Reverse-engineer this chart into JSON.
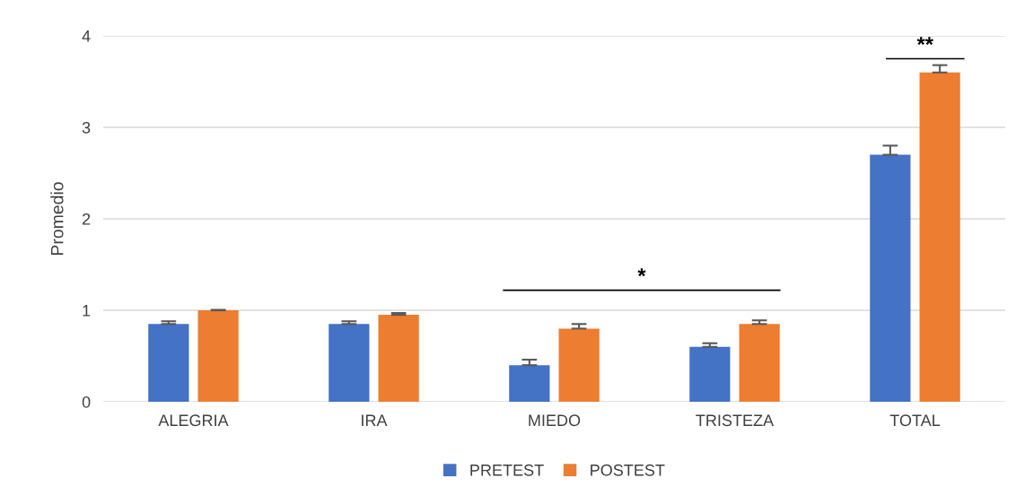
{
  "chart_data": {
    "type": "bar",
    "ylabel": "Promedio",
    "categories": [
      "ALEGRIA",
      "IRA",
      "MIEDO",
      "TRISTEZA",
      "TOTAL"
    ],
    "series": [
      {
        "name": "PRETEST",
        "color": "#4472c4",
        "values": [
          0.85,
          0.85,
          0.4,
          0.6,
          2.7
        ],
        "errors": [
          0.03,
          0.03,
          0.06,
          0.04,
          0.1
        ]
      },
      {
        "name": "POSTEST",
        "color": "#ed7d31",
        "values": [
          1.0,
          0.95,
          0.8,
          0.85,
          3.6
        ],
        "errors": [
          0.005,
          0.02,
          0.05,
          0.04,
          0.08
        ]
      }
    ],
    "ylim": [
      0,
      4
    ],
    "yticks": [
      0,
      1,
      2,
      3,
      4
    ],
    "grid": "y",
    "legend": "bottom",
    "annotations": [
      "*",
      "**"
    ]
  }
}
